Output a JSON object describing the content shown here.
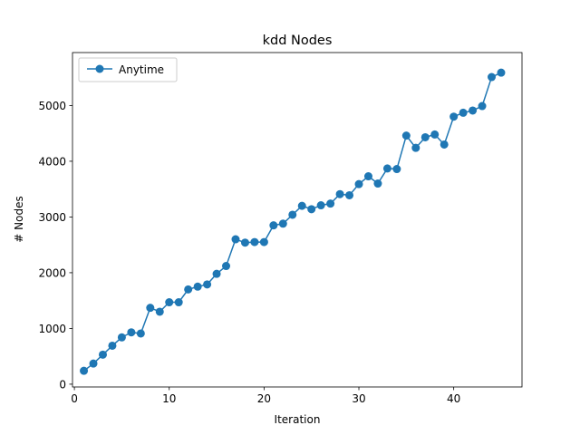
{
  "chart_data": {
    "type": "line",
    "title": "kdd Nodes",
    "xlabel": "Iteration",
    "ylabel": "# Nodes",
    "xlim": [
      -0.2,
      47.2
    ],
    "ylim": [
      -50,
      5950
    ],
    "xticks": [
      0,
      10,
      20,
      30,
      40
    ],
    "yticks": [
      0,
      1000,
      2000,
      3000,
      4000,
      5000
    ],
    "grid": false,
    "legend_position": "upper-left",
    "colors": {
      "series": "#1f77b4"
    },
    "series": [
      {
        "name": "Anytime",
        "marker": "circle",
        "x": [
          1,
          2,
          3,
          4,
          5,
          6,
          7,
          8,
          9,
          10,
          11,
          12,
          13,
          14,
          15,
          16,
          17,
          18,
          19,
          20,
          21,
          22,
          23,
          24,
          25,
          26,
          27,
          28,
          29,
          30,
          31,
          32,
          33,
          34,
          35,
          36,
          37,
          38,
          39,
          40,
          41,
          42,
          43,
          44,
          45
        ],
        "y": [
          240,
          370,
          530,
          690,
          840,
          930,
          910,
          1370,
          1300,
          1470,
          1470,
          1700,
          1750,
          1790,
          1980,
          2120,
          2600,
          2540,
          2550,
          2550,
          2850,
          2880,
          3040,
          3200,
          3140,
          3210,
          3240,
          3410,
          3390,
          3590,
          3730,
          3600,
          3870,
          3860,
          4460,
          4240,
          4430,
          4480,
          4300,
          4800,
          4870,
          4910,
          4990,
          5510,
          5590
        ]
      }
    ]
  }
}
